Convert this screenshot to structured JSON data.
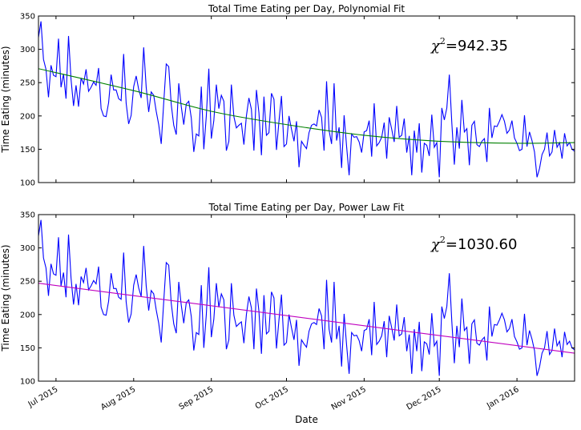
{
  "chart_data": [
    {
      "type": "line",
      "title": "Total Time Eating per Day, Polynomial Fit",
      "xlabel": "",
      "ylabel": "Time Eating (minutes)",
      "ylim": [
        100,
        350
      ],
      "xlim": [
        "2015-06-24",
        "2016-01-24"
      ],
      "yticks": [
        100,
        150,
        200,
        250,
        300,
        350
      ],
      "annotation": {
        "symbol": "χ",
        "superscript": "2",
        "text": "=942.35"
      },
      "series": [
        {
          "color": "#0000ff"
        },
        {
          "color": "#008000",
          "fit": {
            "kind": "polynomial",
            "points": [
              [
                "2015-06-24",
                271
              ],
              [
                "2015-08-01",
                238
              ],
              [
                "2015-09-01",
                207
              ],
              [
                "2015-10-01",
                187
              ],
              [
                "2015-11-01",
                171
              ],
              [
                "2015-12-01",
                162
              ],
              [
                "2016-01-01",
                159
              ],
              [
                "2016-01-24",
                160
              ]
            ]
          }
        }
      ]
    },
    {
      "type": "line",
      "title": "Total Time Eating per Day, Power Law Fit",
      "xlabel": "Date",
      "ylabel": "Time Eating (minutes)",
      "ylim": [
        100,
        350
      ],
      "xlim": [
        "2015-06-24",
        "2016-01-24"
      ],
      "yticks": [
        100,
        150,
        200,
        250,
        300,
        350
      ],
      "xticks": [
        "Jul 2015",
        "Aug 2015",
        "Sep 2015",
        "Oct 2015",
        "Nov 2015",
        "Dec 2015",
        "Jan 2016"
      ],
      "xtick_dates": [
        "2015-07-01",
        "2015-08-01",
        "2015-09-01",
        "2015-10-01",
        "2015-11-01",
        "2015-12-01",
        "2016-01-01"
      ],
      "annotation": {
        "symbol": "χ",
        "superscript": "2",
        "text": "=1030.60"
      },
      "series": [
        {
          "color": "#0000ff"
        },
        {
          "color": "#bf00bf",
          "fit": {
            "kind": "power law",
            "points": [
              [
                "2015-06-24",
                247
              ],
              [
                "2016-01-24",
                142
              ]
            ]
          }
        }
      ]
    }
  ],
  "daily_series": {
    "start": "2015-06-24",
    "y": [
      318,
      342,
      285,
      270,
      228,
      276,
      261,
      259,
      316,
      243,
      263,
      226,
      320,
      255,
      215,
      246,
      214,
      257,
      248,
      270,
      237,
      243,
      251,
      246,
      272,
      211,
      200,
      199,
      220,
      262,
      239,
      239,
      226,
      223,
      293,
      219,
      188,
      201,
      244,
      260,
      240,
      227,
      303,
      243,
      206,
      236,
      231,
      207,
      187,
      158,
      220,
      278,
      274,
      217,
      186,
      172,
      249,
      214,
      187,
      218,
      222,
      197,
      146,
      173,
      170,
      244,
      150,
      200,
      271,
      166,
      193,
      247,
      211,
      231,
      222,
      148,
      162,
      247,
      199,
      182,
      186,
      189,
      157,
      200,
      227,
      210,
      148,
      239,
      205,
      141,
      229,
      171,
      175,
      234,
      225,
      149,
      192,
      230,
      154,
      158,
      200,
      180,
      162,
      192,
      123,
      162,
      156,
      151,
      175,
      186,
      188,
      185,
      209,
      198,
      148,
      252,
      178,
      158,
      249,
      163,
      183,
      122,
      201,
      154,
      111,
      173,
      168,
      169,
      161,
      145,
      176,
      178,
      193,
      139,
      219,
      155,
      160,
      168,
      190,
      136,
      198,
      180,
      161,
      215,
      168,
      171,
      196,
      145,
      170,
      111,
      178,
      145,
      189,
      115,
      159,
      156,
      140,
      202,
      153,
      160,
      108,
      212,
      194,
      212,
      262,
      189,
      127,
      183,
      151,
      224,
      176,
      181,
      126,
      186,
      192,
      157,
      154,
      162,
      166,
      131,
      212,
      167,
      185,
      184,
      192,
      202,
      192,
      174,
      179,
      193,
      167,
      159,
      148,
      150,
      201,
      154,
      176,
      163,
      146,
      108,
      121,
      142,
      150,
      175,
      140,
      146,
      179,
      153,
      160,
      136,
      174,
      155,
      160,
      150,
      147,
      140,
      173,
      139,
      150,
      136,
      127,
      110,
      141,
      131,
      158,
      170,
      143,
      185,
      183,
      154,
      140,
      169,
      159,
      153,
      158,
      150,
      154,
      138
    ]
  }
}
